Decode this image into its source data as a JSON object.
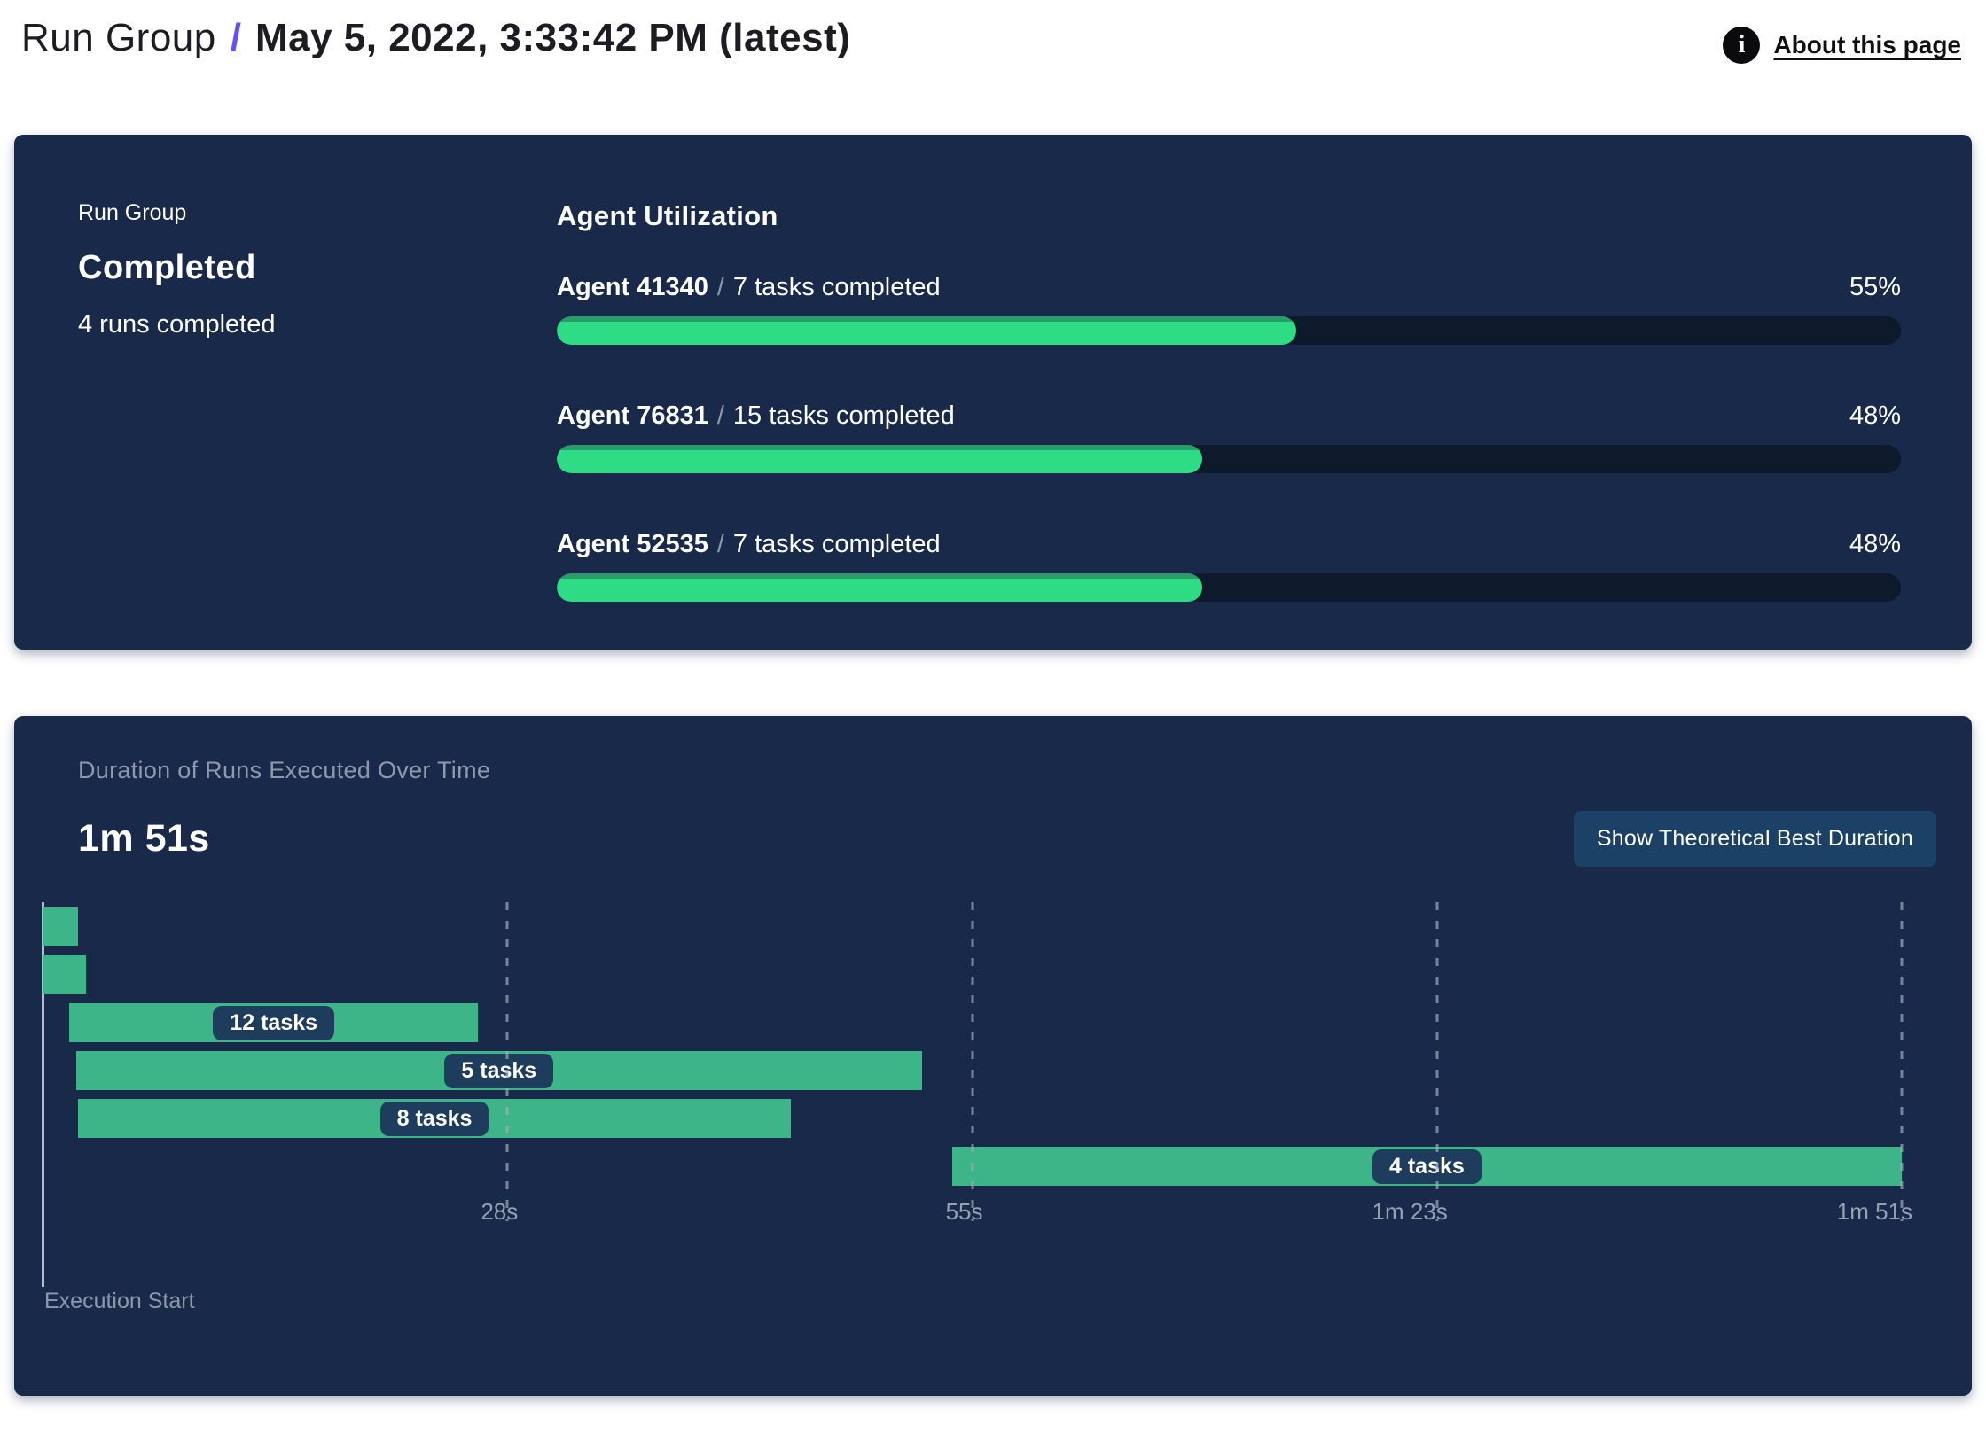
{
  "header": {
    "breadcrumb_root": "Run Group",
    "separator": "/",
    "title": "May 5, 2022, 3:33:42 PM (latest)",
    "info_icon_glyph": "i",
    "about_link": "About this page"
  },
  "summary_panel": {
    "label": "Run Group",
    "status": "Completed",
    "runs_completed": "4 runs completed",
    "utilization": {
      "title": "Agent Utilization",
      "separator": "/",
      "agents": [
        {
          "name": "Agent 41340",
          "tasks": "7 tasks completed",
          "percent": 55,
          "percent_label": "55%"
        },
        {
          "name": "Agent 76831",
          "tasks": "15 tasks completed",
          "percent": 48,
          "percent_label": "48%"
        },
        {
          "name": "Agent 52535",
          "tasks": "7 tasks completed",
          "percent": 48,
          "percent_label": "48%"
        }
      ]
    }
  },
  "duration_panel": {
    "title": "Duration of Runs Executed Over Time",
    "total_duration": "1m 51s",
    "button_label": "Show Theoretical Best Duration",
    "axis_label": "Execution Start"
  },
  "chart_data": {
    "type": "bar",
    "subtype": "gantt-timeline",
    "title": "Duration of Runs Executed Over Time",
    "total_duration_label": "1m 51s",
    "x_axis_start_label": "Execution Start",
    "total_seconds": 111,
    "xlim": [
      0,
      111
    ],
    "grid": "dashed-vertical",
    "x_ticks": [
      {
        "seconds": 27.75,
        "label": "28s"
      },
      {
        "seconds": 55.5,
        "label": "55s"
      },
      {
        "seconds": 83.25,
        "label": "1m 23s"
      },
      {
        "seconds": 111,
        "label": "1m 51s"
      }
    ],
    "bars": [
      {
        "row": 1,
        "start_s": 0,
        "end_s": 2.1,
        "label": ""
      },
      {
        "row": 2,
        "start_s": 0,
        "end_s": 2.6,
        "label": ""
      },
      {
        "row": 3,
        "start_s": 1.6,
        "end_s": 26,
        "label": "12 tasks"
      },
      {
        "row": 4,
        "start_s": 2,
        "end_s": 52.5,
        "label": "5 tasks"
      },
      {
        "row": 5,
        "start_s": 2.1,
        "end_s": 44.7,
        "label": "8 tasks"
      },
      {
        "row": 6,
        "start_s": 54.3,
        "end_s": 111,
        "label": "4 tasks"
      }
    ]
  },
  "colors": {
    "accent_purple": "#6b4df6",
    "panel_background": "#18294a",
    "progress_fill": "#2edc86",
    "progress_fill_rim": "#2a9c6c",
    "progress_track": "#0d1a2b",
    "gantt_bar": "#3eb489",
    "pill_background": "#1e3c5c",
    "button_background": "#1c4166",
    "muted_text": "#8d9aab"
  }
}
